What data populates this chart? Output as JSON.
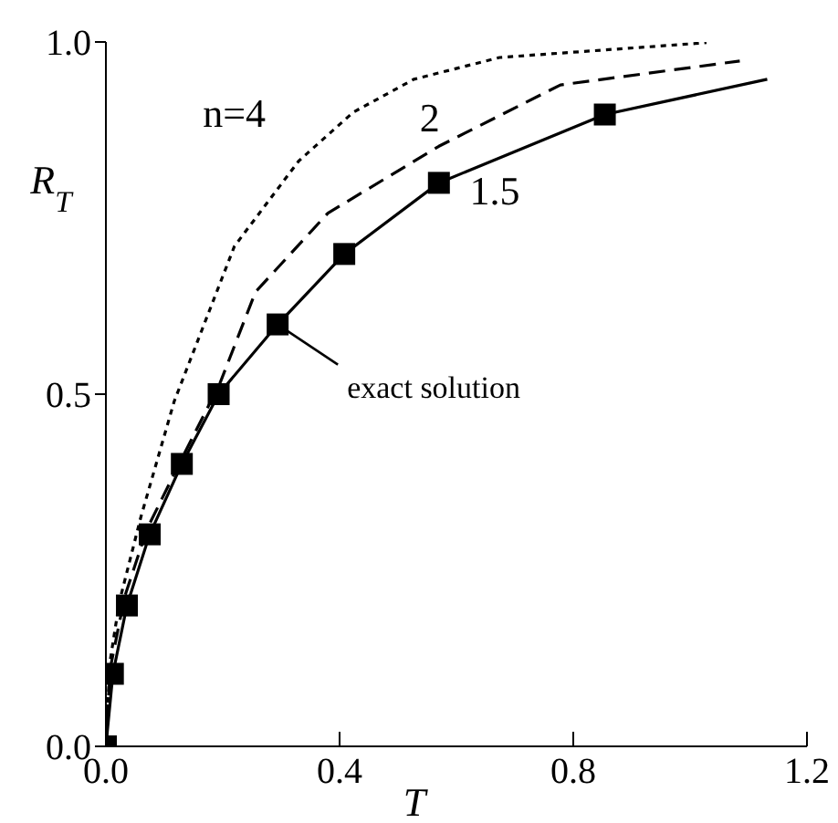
{
  "chart_data": {
    "type": "line",
    "xlabel": "T",
    "ylabel": "R$_{T}$",
    "xlim": [
      0,
      1.2
    ],
    "ylim": [
      0,
      1.0
    ],
    "xticks": [
      {
        "value": 0,
        "label": "0.0"
      },
      0.4,
      0.8,
      1.2
    ],
    "yticks": [
      {
        "value": 0,
        "label": "0.0"
      },
      0.5,
      {
        "value": 1,
        "label": "1.0"
      }
    ],
    "grid": false,
    "legend": false,
    "marker": "none",
    "series": [
      {
        "color": "#000000",
        "line_style": "dotted",
        "x": [
          0,
          0.007,
          0.023,
          0.06,
          0.117,
          0.22,
          0.33,
          0.423,
          0.527,
          0.674,
          1.028
        ],
        "values": [
          0,
          0.12,
          0.205,
          0.326,
          0.49,
          0.71,
          0.831,
          0.9,
          0.947,
          0.978,
          0.999
        ]
      },
      {
        "color": "#000000",
        "line_style": "dashed",
        "x": [
          0,
          0.007,
          0.032,
          0.07,
          0.132,
          0.195,
          0.256,
          0.38,
          0.57,
          0.778,
          1.085
        ],
        "values": [
          0,
          0.109,
          0.212,
          0.308,
          0.412,
          0.515,
          0.645,
          0.757,
          0.852,
          0.939,
          0.973
        ]
      },
      {
        "color": "#000000",
        "line_style": "solid",
        "x": [
          0,
          0.012,
          0.036,
          0.075,
          0.13,
          0.193,
          0.294,
          0.408,
          0.57,
          0.854,
          1.132
        ],
        "values": [
          0,
          0.103,
          0.2,
          0.301,
          0.401,
          0.5,
          0.599,
          0.699,
          0.8,
          0.897,
          0.947
        ]
      },
      {
        "type": "scatter",
        "color": "#000000",
        "marker": "square",
        "x": [
          0,
          0.012,
          0.036,
          0.075,
          0.13,
          0.193,
          0.294,
          0.408,
          0.57,
          0.854
        ],
        "values": [
          0,
          0.103,
          0.2,
          0.301,
          0.401,
          0.5,
          0.599,
          0.699,
          0.8,
          0.897
        ]
      }
    ],
    "annotations": [
      {
        "text": "n=4",
        "x": 0.423,
        "y": 0.9
      },
      {
        "text": "2",
        "x": 0.57,
        "y": 0.852
      },
      {
        "text": "1.5",
        "x": 0.65,
        "y": 0.827
      },
      {
        "text": "exact solution",
        "x": 0.294,
        "y": 0.599
      }
    ]
  }
}
